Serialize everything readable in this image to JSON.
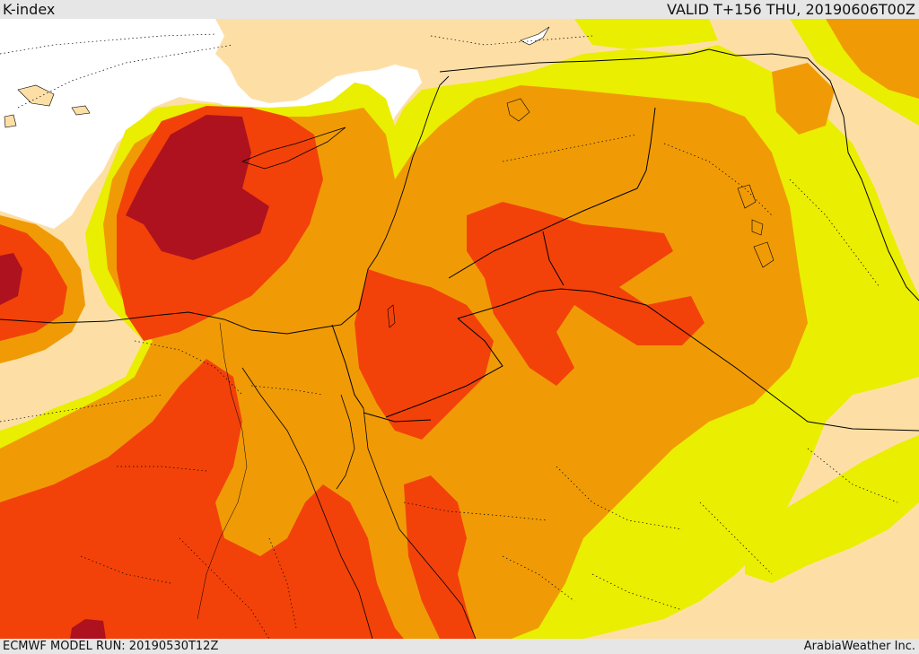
{
  "header": {
    "title": "K-index",
    "valid": "VALID T+156 THU, 20190606T00Z"
  },
  "footer": {
    "model_run": "ECMWF MODEL RUN: 20190530T12Z",
    "credit": "ArabiaWeather Inc."
  },
  "legend_colors": {
    "sea": "#ffffff",
    "lowest": "#fddfa6",
    "low": "#eaee00",
    "mid": "#f09b06",
    "high": "#f2420a",
    "highest": "#ae121e"
  },
  "map": {
    "field": "K-index",
    "region": "Eastern Mediterranean / Middle East"
  }
}
